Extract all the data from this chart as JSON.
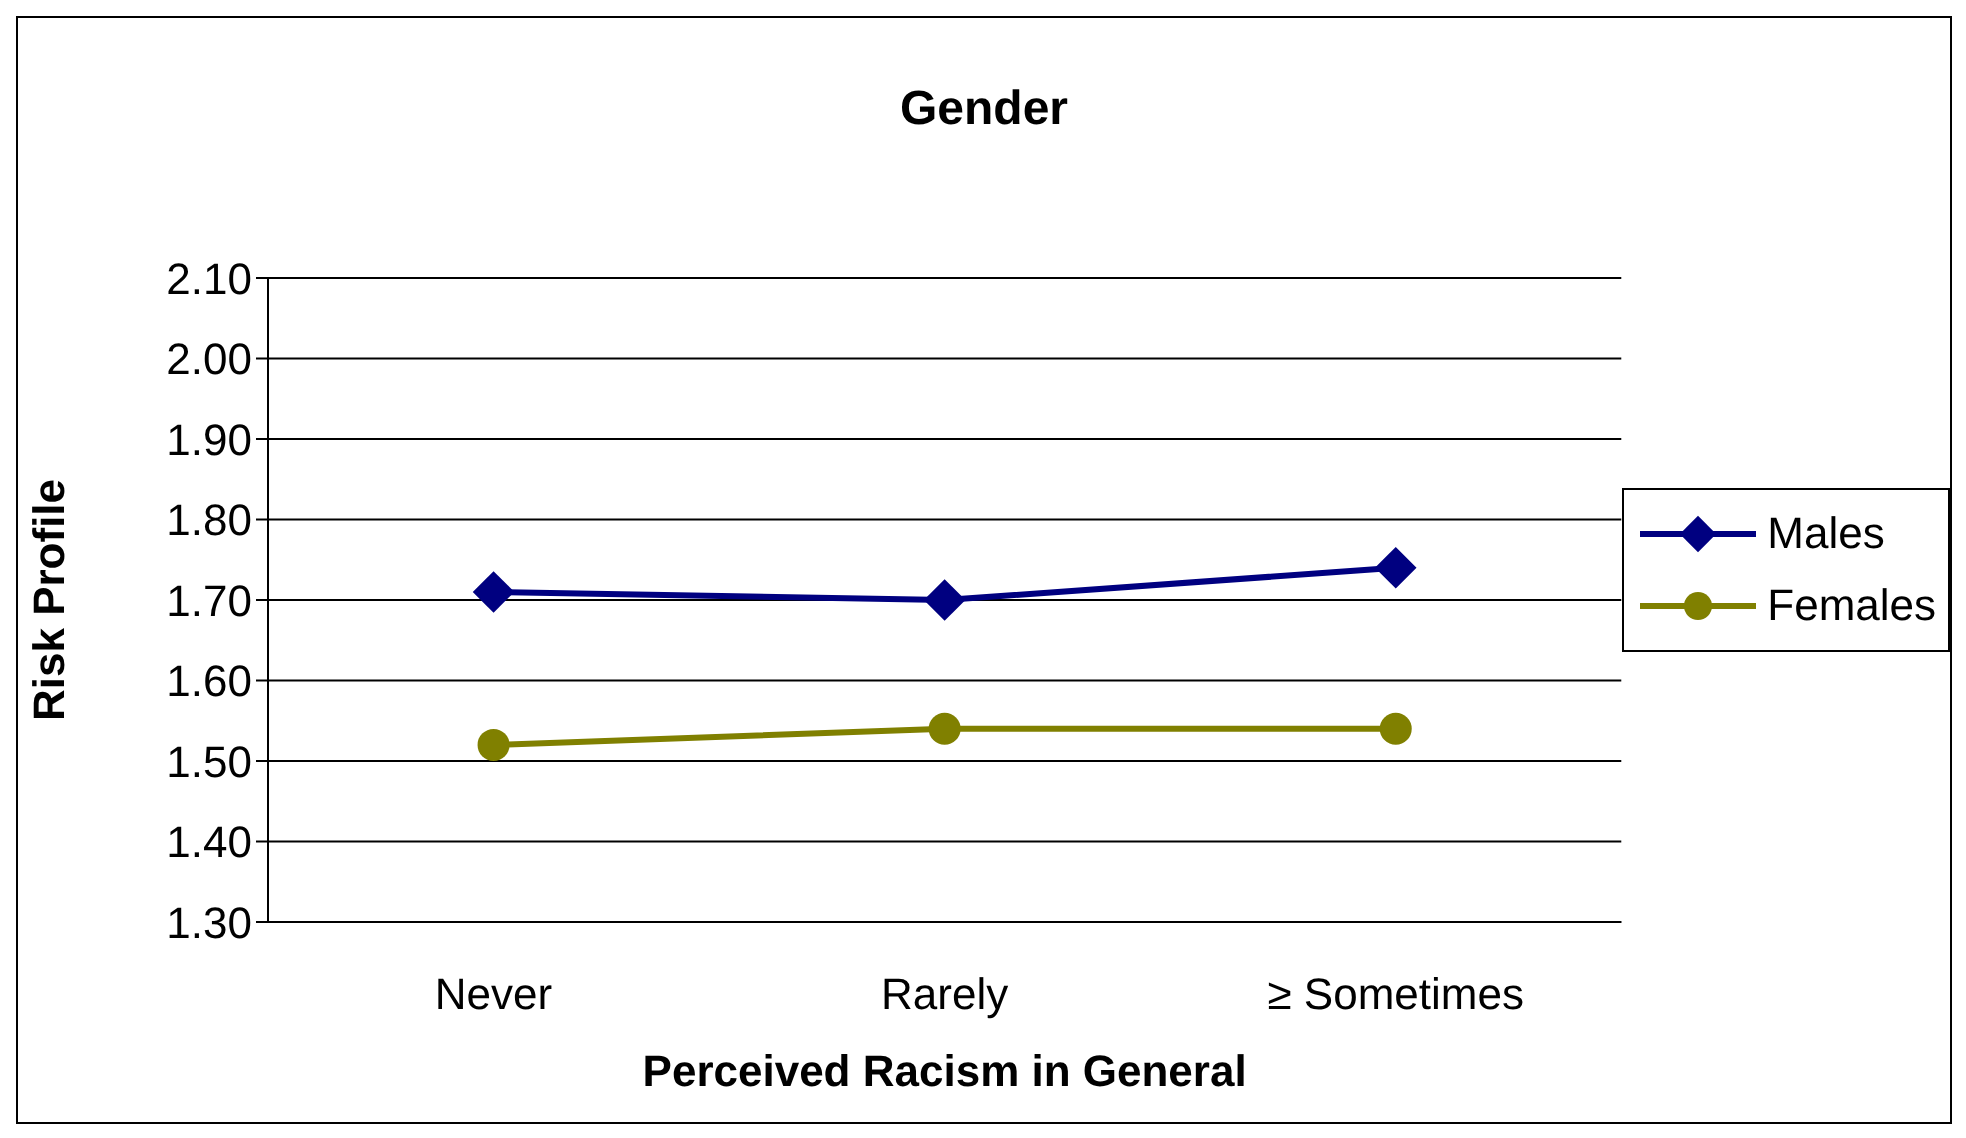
{
  "chart_data": {
    "type": "line",
    "title": "Gender",
    "xlabel": "Perceived Racism in General",
    "ylabel": "Risk Profile",
    "categories": [
      "Never",
      "Rarely",
      "≥ Sometimes"
    ],
    "series": [
      {
        "name": "Males",
        "color": "#000080",
        "marker": "diamond",
        "values": [
          1.71,
          1.7,
          1.74
        ]
      },
      {
        "name": "Females",
        "color": "#808000",
        "marker": "circle",
        "values": [
          1.52,
          1.54,
          1.54
        ]
      }
    ],
    "ylim": [
      1.3,
      2.1
    ],
    "yticks": [
      {
        "value": 1.3,
        "label": "1.30"
      },
      {
        "value": 1.4,
        "label": "1.40"
      },
      {
        "value": 1.5,
        "label": "1.50"
      },
      {
        "value": 1.6,
        "label": "1.60"
      },
      {
        "value": 1.7,
        "label": "1.70"
      },
      {
        "value": 1.8,
        "label": "1.80"
      },
      {
        "value": 1.9,
        "label": "1.90"
      },
      {
        "value": 2.0,
        "label": "2.00"
      },
      {
        "value": 2.1,
        "label": "2.10"
      }
    ],
    "grid": "y",
    "legend": "right",
    "line_style": "solid"
  }
}
